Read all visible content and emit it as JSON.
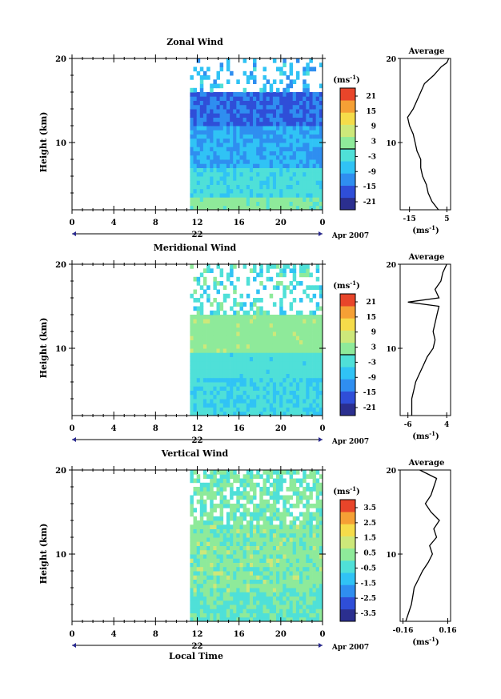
{
  "figure": {
    "xlabel": "Local Time",
    "height_label": "Height (km)",
    "avg_title": "Average",
    "unit_label": "(ms",
    "unit_exp": "-1",
    "date_right": "Apr 2007"
  },
  "chart_data": [
    {
      "type": "heatmap",
      "title": "Zonal Wind",
      "xlabel": "Local Time",
      "ylabel": "Height (km)",
      "x_ticks": [
        "0",
        "4",
        "8",
        "12",
        "16",
        "20",
        "0"
      ],
      "date_label": "22",
      "y_ticks": [
        "10",
        "20"
      ],
      "ylim": [
        2,
        20
      ],
      "x_hours_range": [
        0,
        24
      ],
      "data_start_hour": 11.3,
      "colorbar": {
        "unit": "(ms⁻¹)",
        "ticks": [
          21,
          15,
          9,
          3,
          -3,
          -9,
          -15,
          -21
        ],
        "zero_line": true
      },
      "profile": {
        "title": "Average",
        "xlabel": "(ms⁻¹)",
        "x_ticks": [
          "-15",
          "5"
        ],
        "xlim": [
          -20,
          7
        ],
        "height": [
          2.0,
          3.0,
          4.0,
          5.0,
          6.0,
          7.0,
          8.0,
          9.0,
          10.0,
          11.0,
          12.0,
          13.0,
          14.0,
          15.0,
          16.0,
          17.0,
          18.0,
          19.0,
          19.5,
          20.0
        ],
        "values": [
          0.5,
          -3,
          -5,
          -6,
          -8,
          -9,
          -9,
          -11,
          -12,
          -13,
          -15,
          -16,
          -13,
          -11,
          -9,
          -7,
          -2,
          2,
          5,
          6
        ]
      },
      "approx_colors_top_to_bottom": [
        "sparse white gaps",
        "dark blue 12-15 km",
        "medium blue 7-12 km",
        "cyan 3-7 km",
        "green near surface"
      ]
    },
    {
      "type": "heatmap",
      "title": "Meridional Wind",
      "xlabel": "Local Time",
      "ylabel": "Height (km)",
      "x_ticks": [
        "0",
        "4",
        "8",
        "12",
        "16",
        "20",
        "0"
      ],
      "date_label": "22",
      "y_ticks": [
        "10",
        "20"
      ],
      "ylim": [
        2,
        20
      ],
      "x_hours_range": [
        0,
        24
      ],
      "data_start_hour": 11.3,
      "colorbar": {
        "unit": "(ms⁻¹)",
        "ticks": [
          21,
          15,
          9,
          3,
          -3,
          -9,
          -15,
          -21
        ],
        "zero_line": true
      },
      "profile": {
        "title": "Average",
        "xlabel": "(ms⁻¹)",
        "x_ticks": [
          "-6",
          "4"
        ],
        "xlim": [
          -8,
          5
        ],
        "height": [
          2.0,
          3.0,
          4.0,
          5.0,
          6.0,
          7.0,
          8.0,
          9.0,
          10.0,
          11.0,
          12.0,
          13.0,
          14.0,
          15.0,
          15.5,
          16.0,
          17.0,
          18.0,
          19.0,
          20.0
        ],
        "values": [
          -5,
          -5,
          -5,
          -4.5,
          -4,
          -3,
          -2,
          -1,
          0.5,
          1,
          0.5,
          1,
          1.5,
          2,
          -6,
          2,
          1,
          2.5,
          3,
          4
        ]
      },
      "approx_colors_top_to_bottom": [
        "sparse white gaps",
        "cyan 14-18 km",
        "green 9-13 km",
        "cyan/blue 3-9 km"
      ]
    },
    {
      "type": "heatmap",
      "title": "Vertical Wind",
      "xlabel": "Local Time",
      "ylabel": "Height (km)",
      "x_ticks": [
        "0",
        "4",
        "8",
        "12",
        "16",
        "20",
        "0"
      ],
      "date_label": "22",
      "y_ticks": [
        "10",
        "20"
      ],
      "ylim": [
        2,
        20
      ],
      "x_hours_range": [
        0,
        24
      ],
      "data_start_hour": 11.3,
      "colorbar": {
        "unit": "(ms⁻¹)",
        "ticks": [
          3.5,
          2.5,
          1.5,
          0.5,
          -0.5,
          -1.5,
          -2.5,
          -3.5
        ],
        "zero_line": false
      },
      "profile": {
        "title": "Average",
        "xlabel": "(ms⁻¹)",
        "x_ticks": [
          "-0.16",
          "0.16"
        ],
        "xlim": [
          -0.18,
          0.18
        ],
        "height": [
          2.0,
          3.0,
          4.0,
          5.0,
          6.0,
          7.0,
          8.0,
          9.0,
          10.0,
          11.0,
          12.0,
          13.0,
          14.0,
          15.0,
          16.0,
          17.0,
          18.0,
          19.0,
          20.0
        ],
        "values": [
          -0.14,
          -0.12,
          -0.1,
          -0.09,
          -0.08,
          -0.05,
          -0.02,
          0.02,
          0.05,
          0.03,
          0.08,
          0.06,
          0.1,
          0.04,
          0.0,
          0.04,
          0.06,
          0.08,
          -0.04
        ]
      },
      "approx_colors_top_to_bottom": [
        "light green/cyan with white gaps 13-20 km",
        "light green 6-13 km",
        "cyan/green near surface"
      ]
    }
  ]
}
